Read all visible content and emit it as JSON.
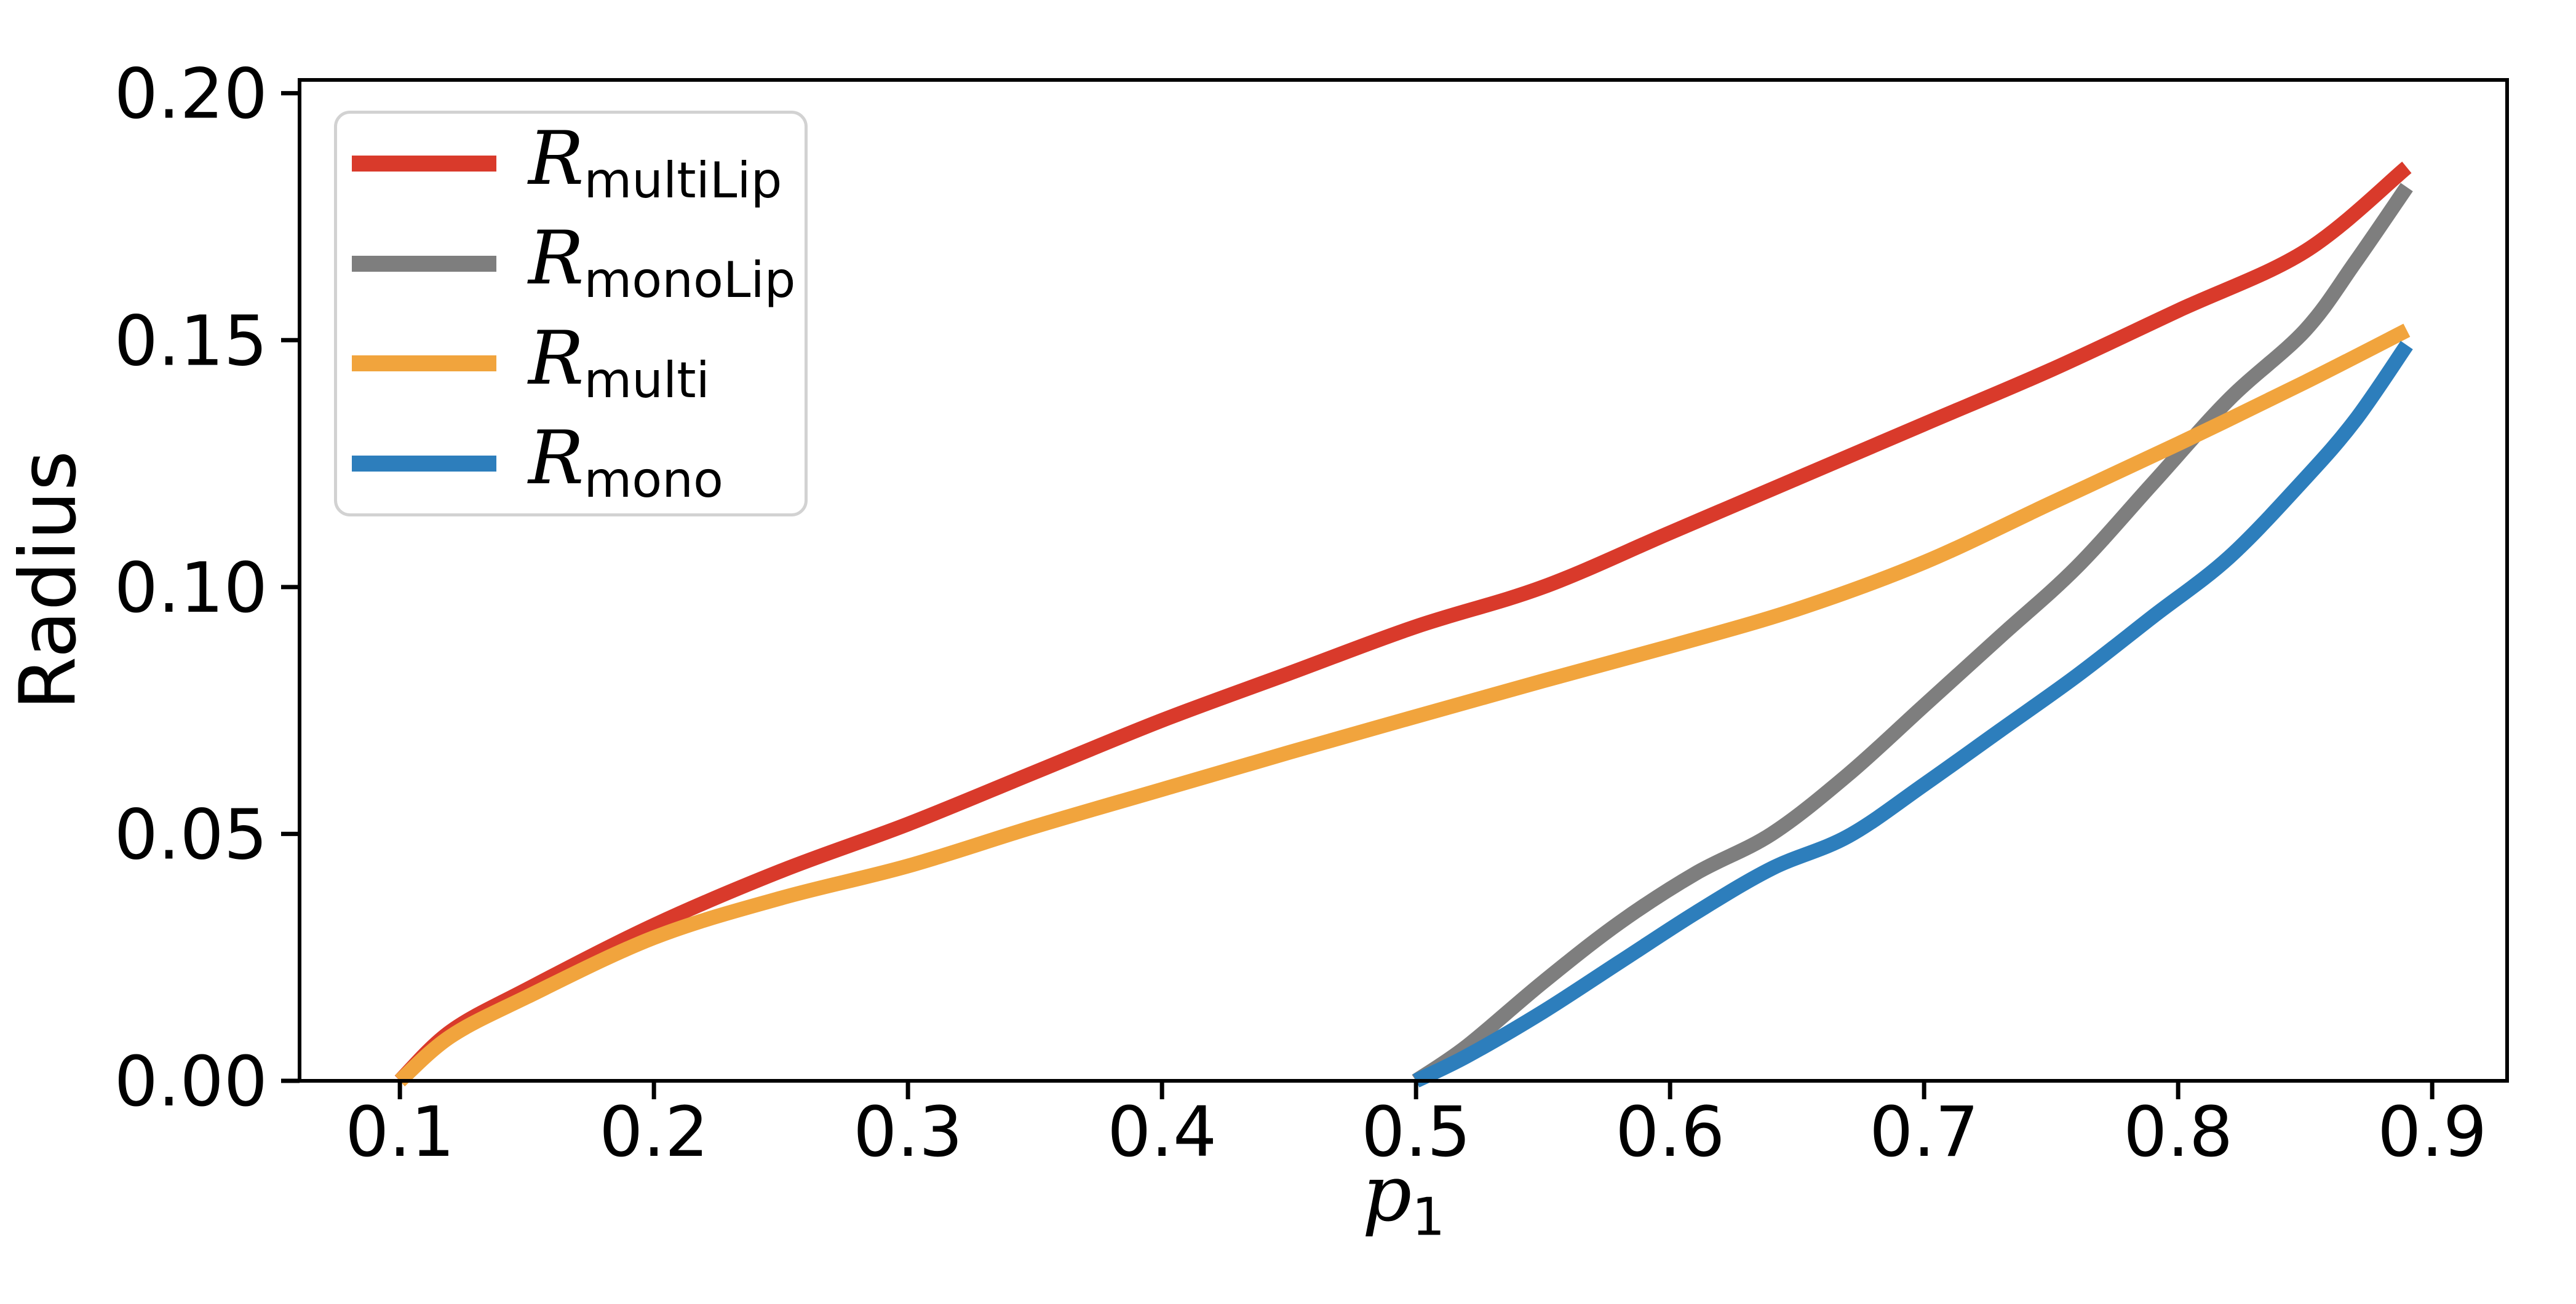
{
  "figure": {
    "background": "#ffffff",
    "text_color": "#000000"
  },
  "chart_data": {
    "type": "line",
    "title": "",
    "xlabel": {
      "base": "p",
      "sub": "1"
    },
    "ylabel": "Radius",
    "xlim": [
      0.0605,
      0.9295
    ],
    "ylim": [
      0.0,
      0.2027
    ],
    "grid": false,
    "legend_position": "upper-left",
    "x_ticks": {
      "values": [
        0.1,
        0.2,
        0.3,
        0.4,
        0.5,
        0.6,
        0.7,
        0.8,
        0.9
      ],
      "labels": [
        "0.1",
        "0.2",
        "0.3",
        "0.4",
        "0.5",
        "0.6",
        "0.7",
        "0.8",
        "0.9"
      ]
    },
    "y_ticks": {
      "values": [
        0.0,
        0.05,
        0.1,
        0.15,
        0.2
      ],
      "labels": [
        "0.00",
        "0.05",
        "0.10",
        "0.15",
        "0.20"
      ]
    },
    "series": [
      {
        "name": "R_multiLip",
        "label": {
          "base": "R",
          "sub": "multiLip"
        },
        "color": "#d93a2b",
        "x": [
          0.1,
          0.12,
          0.15,
          0.2,
          0.25,
          0.3,
          0.35,
          0.4,
          0.45,
          0.5,
          0.55,
          0.6,
          0.65,
          0.7,
          0.75,
          0.8,
          0.85,
          0.89
        ],
        "y": [
          0.0,
          0.01,
          0.0185,
          0.0315,
          0.0425,
          0.052,
          0.0625,
          0.073,
          0.0825,
          0.092,
          0.1,
          0.111,
          0.122,
          0.133,
          0.144,
          0.156,
          0.168,
          0.185
        ]
      },
      {
        "name": "R_monoLip",
        "label": {
          "base": "R",
          "sub": "monoLip"
        },
        "color": "#7e7e7e",
        "x": [
          0.5,
          0.52,
          0.55,
          0.58,
          0.61,
          0.64,
          0.67,
          0.7,
          0.73,
          0.76,
          0.79,
          0.82,
          0.85,
          0.87,
          0.89
        ],
        "y": [
          0.0,
          0.007,
          0.02,
          0.032,
          0.042,
          0.05,
          0.062,
          0.076,
          0.09,
          0.104,
          0.121,
          0.138,
          0.152,
          0.166,
          0.181
        ]
      },
      {
        "name": "R_multi",
        "label": {
          "base": "R",
          "sub": "multi"
        },
        "color": "#f1a43d",
        "x": [
          0.1,
          0.12,
          0.15,
          0.2,
          0.25,
          0.3,
          0.35,
          0.4,
          0.45,
          0.5,
          0.55,
          0.6,
          0.65,
          0.7,
          0.75,
          0.8,
          0.85,
          0.89
        ],
        "y": [
          0.0,
          0.009,
          0.017,
          0.029,
          0.037,
          0.0435,
          0.0515,
          0.059,
          0.0665,
          0.0738,
          0.081,
          0.088,
          0.0955,
          0.105,
          0.117,
          0.129,
          0.1415,
          0.152
        ]
      },
      {
        "name": "R_mono",
        "label": {
          "base": "R",
          "sub": "mono"
        },
        "color": "#2d7ebc",
        "x": [
          0.5,
          0.52,
          0.55,
          0.58,
          0.61,
          0.64,
          0.67,
          0.7,
          0.73,
          0.76,
          0.79,
          0.82,
          0.85,
          0.87,
          0.89
        ],
        "y": [
          0.0,
          0.005,
          0.014,
          0.024,
          0.034,
          0.043,
          0.0495,
          0.06,
          0.071,
          0.082,
          0.094,
          0.106,
          0.122,
          0.134,
          0.149
        ]
      }
    ]
  }
}
